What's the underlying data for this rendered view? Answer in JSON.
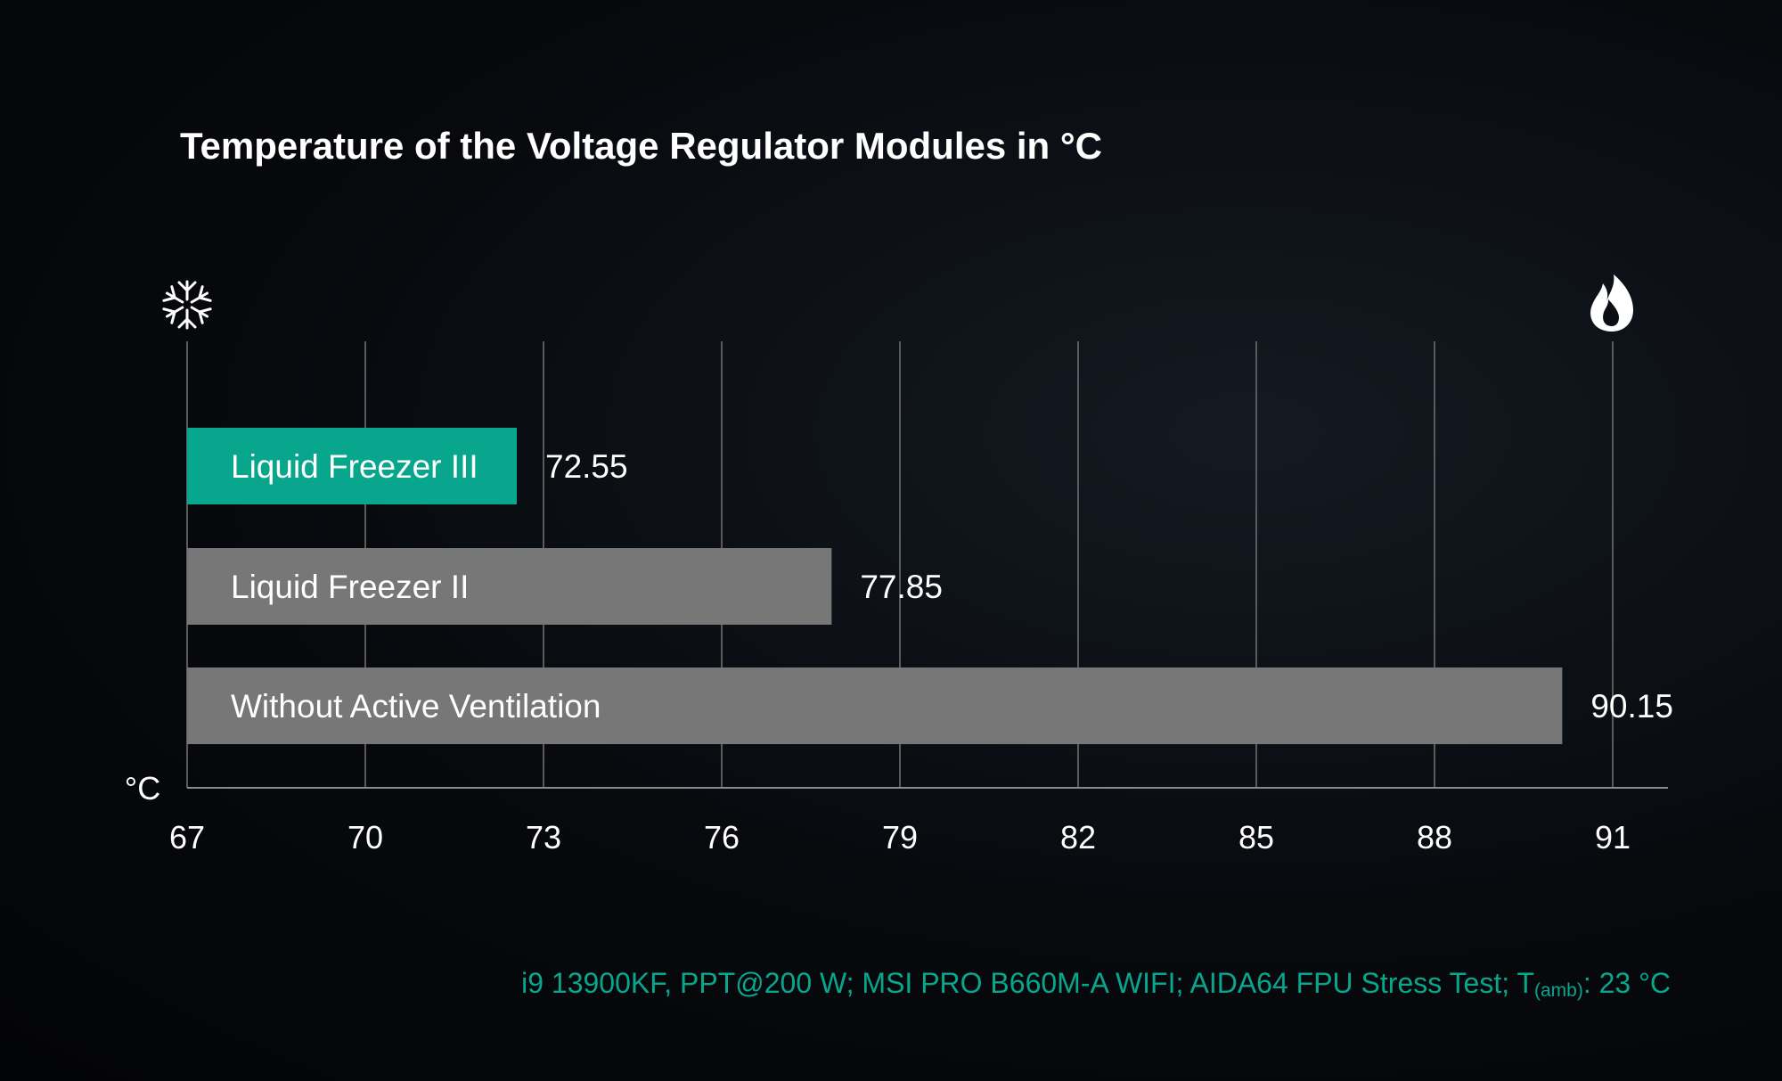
{
  "chart_data": {
    "type": "bar",
    "orientation": "horizontal",
    "title": "Temperature of the Voltage Regulator Modules in °C",
    "unit_label": "°C",
    "categories": [
      "Liquid Freezer III",
      "Liquid Freezer II",
      "Without Active Ventilation"
    ],
    "values": [
      72.55,
      77.85,
      90.15
    ],
    "value_labels": [
      "72.55",
      "77.85",
      "90.15"
    ],
    "bar_colors": [
      "#08a68d",
      "#777777",
      "#777777"
    ],
    "xlim": [
      67,
      91
    ],
    "x_ticks": [
      67,
      70,
      73,
      76,
      79,
      82,
      85,
      88,
      91
    ],
    "grid": true,
    "icons": {
      "left": "snowflake-icon",
      "right": "flame-icon"
    },
    "footnote": {
      "main": "i9 13900KF, PPT@200 W; MSI PRO B660M-A WIFI; AIDA64 FPU Stress Test; T",
      "sub": "(amb)",
      "tail": ": 23 °C"
    },
    "footnote_color": "#08a68d"
  }
}
